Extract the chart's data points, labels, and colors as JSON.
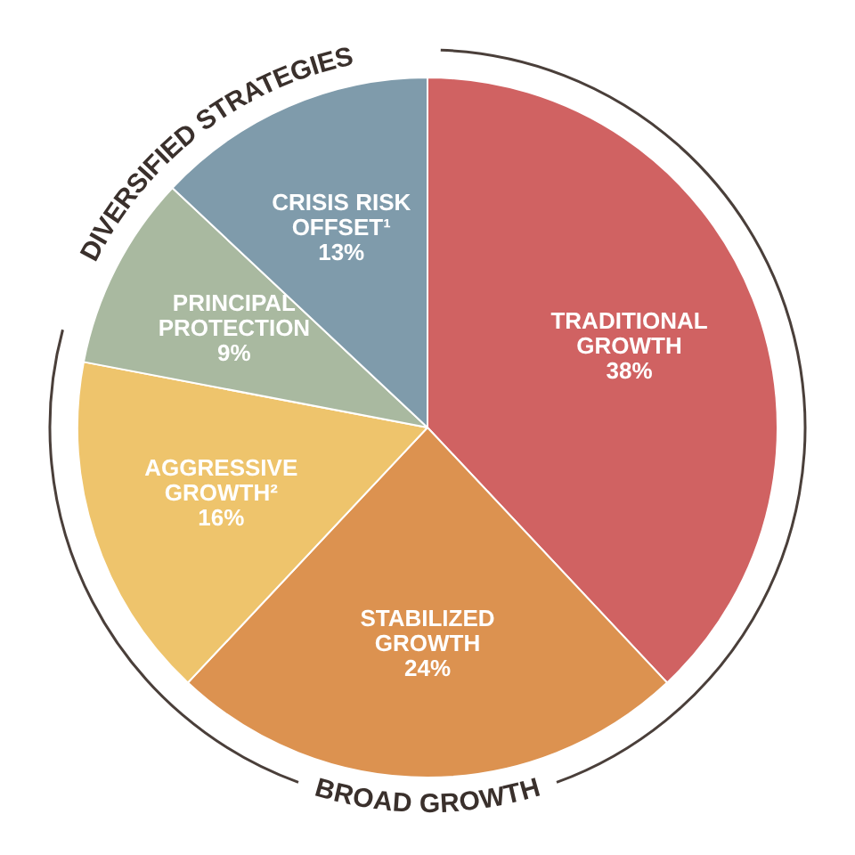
{
  "chart_data": {
    "type": "pie",
    "categories": [
      "TRADITIONAL GROWTH",
      "STABILIZED GROWTH",
      "AGGRESSIVE GROWTH²",
      "PRINCIPAL PROTECTION",
      "CRISIS RISK OFFSET¹"
    ],
    "values": [
      38,
      24,
      16,
      9,
      13
    ],
    "colors": [
      "#d06262",
      "#dc9250",
      "#eec46c",
      "#a9b9a0",
      "#7f9bab"
    ],
    "value_labels": [
      "38%",
      "24%",
      "16%",
      "9%",
      "13%"
    ],
    "annotations": [
      "DIVERSIFIED STRATEGIES",
      "BROAD GROWTH"
    ],
    "legend": false
  }
}
